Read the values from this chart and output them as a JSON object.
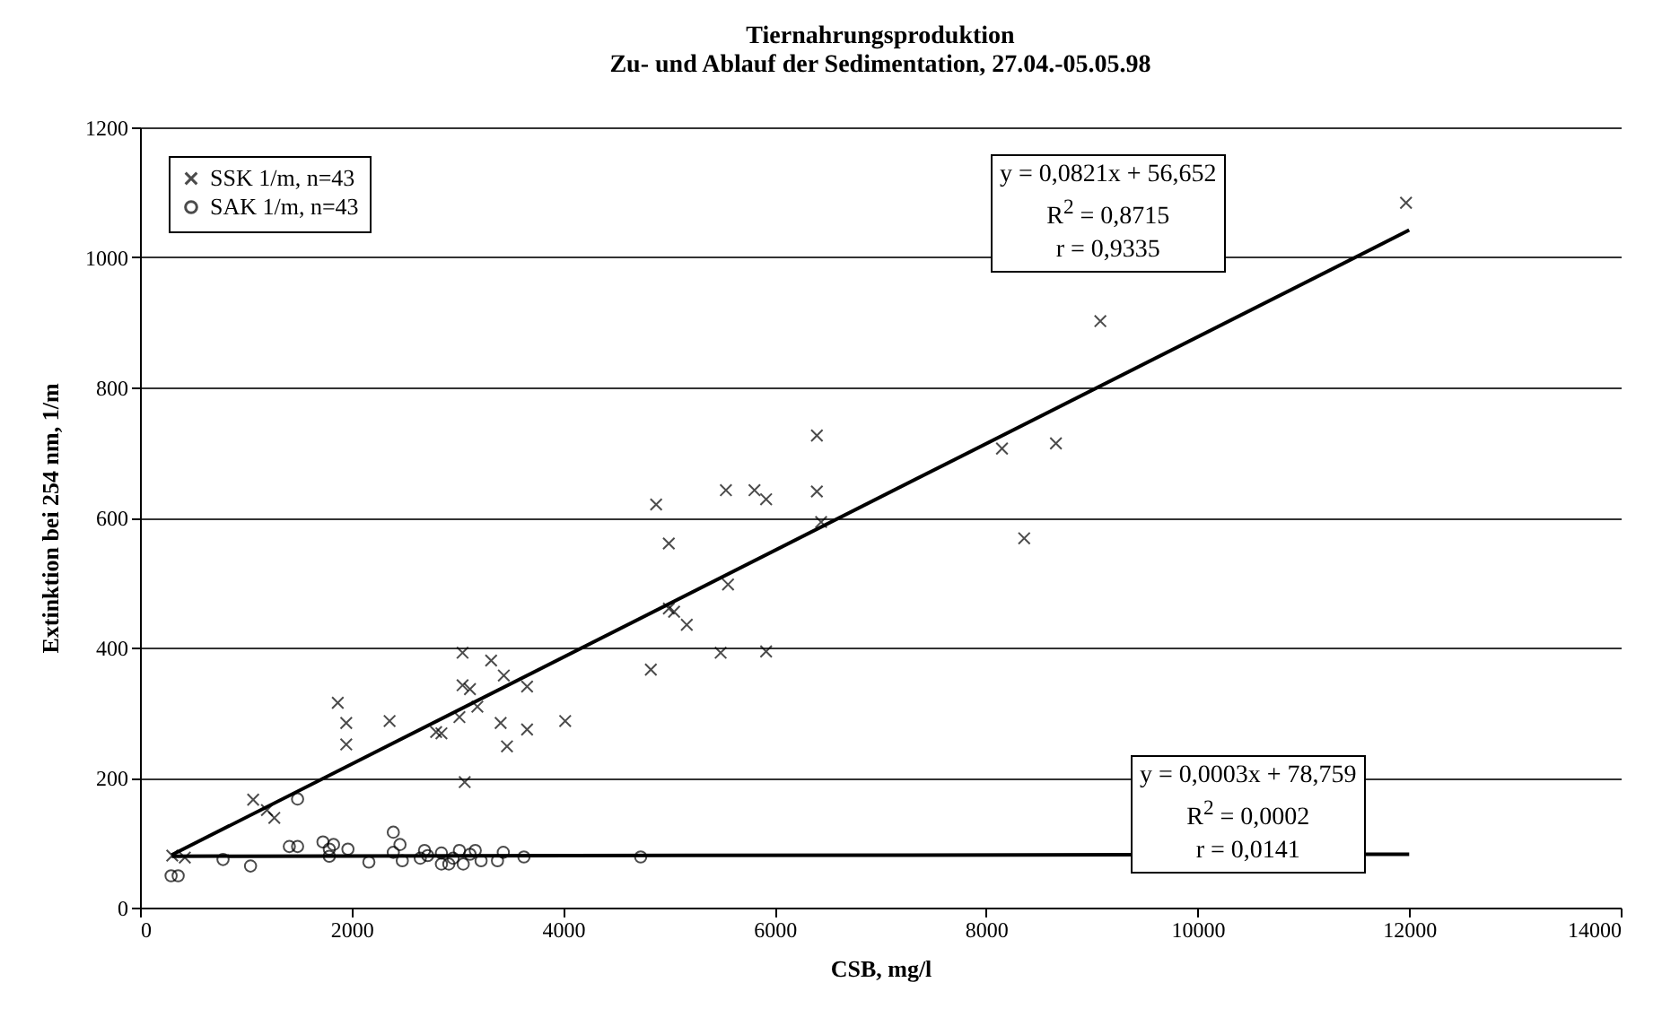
{
  "chart_data": {
    "type": "scatter",
    "title": "Tiernahrungsproduktion",
    "subtitle": "Zu- und Ablauf der Sedimentation, 27.04.-05.05.98",
    "xlabel": "CSB, mg/l",
    "ylabel": "Extinktion bei 254 nm, 1/m",
    "xlim": [
      0,
      14000
    ],
    "xticks": [
      0,
      2000,
      4000,
      6000,
      8000,
      10000,
      12000,
      14000
    ],
    "ylim": [
      0,
      1200
    ],
    "yticks": [
      0,
      200,
      400,
      600,
      800,
      1000,
      1200
    ],
    "grid": "y",
    "legend": "top left",
    "series": [
      {
        "name": "SSK 1/m, n=43",
        "marker": "cross",
        "color": "#000000",
        "x": [
          305,
          424,
          1070,
          1200,
          1270,
          1870,
          1950,
          1950,
          2360,
          2800,
          2850,
          3050,
          3050,
          3120,
          3190,
          3020,
          3070,
          3320,
          3440,
          3410,
          3470,
          3660,
          3660,
          4020,
          4830,
          4880,
          5000,
          5000,
          5050,
          5170,
          5490,
          5540,
          5560,
          5810,
          5920,
          5920,
          6400,
          6400,
          6440,
          8150,
          8360,
          8660,
          9080,
          11970
        ],
        "values": [
          80,
          77,
          166,
          150,
          138,
          315,
          284,
          251,
          287,
          270,
          268,
          392,
          342,
          336,
          309,
          293,
          193,
          380,
          357,
          284,
          248,
          340,
          274,
          287,
          366,
          620,
          560,
          460,
          455,
          435,
          392,
          642,
          497,
          642,
          628,
          394,
          726,
          640,
          593,
          706,
          568,
          714,
          902,
          1084
        ]
      },
      {
        "name": "SAK 1/m, n=43",
        "marker": "circle",
        "color": "#000000",
        "x": [
          294,
          361,
          785,
          1045,
          1412,
          1490,
          1490,
          1730,
          1790,
          1790,
          1830,
          1966,
          2164,
          2395,
          2395,
          2458,
          2480,
          2650,
          2690,
          2720,
          2850,
          2850,
          2920,
          2960,
          3020,
          3056,
          3120,
          3170,
          3225,
          3380,
          3435,
          3630,
          4734
        ],
        "values": [
          49,
          49,
          74,
          64,
          94,
          94,
          167,
          101,
          90,
          79,
          97,
          90,
          70,
          116,
          85,
          97,
          72,
          76,
          88,
          80,
          84,
          67,
          67,
          76,
          88,
          67,
          82,
          88,
          72,
          72,
          85,
          78,
          78
        ]
      },
      {
        "type": "line",
        "color": "#000000",
        "x": [
          300,
          12000
        ],
        "values": [
          81,
          1042
        ]
      },
      {
        "type": "line",
        "color": "#000000",
        "x": [
          300,
          12000
        ],
        "values": [
          79,
          82
        ]
      }
    ],
    "annotations": [
      "y = 0,0821x + 56,652",
      "R$^{2}$ = 0,8715",
      "r = 0,9335",
      "y = 0,0003x + 78,759",
      "R$^{2}$ = 0,0002",
      "r = 0,0141"
    ]
  }
}
